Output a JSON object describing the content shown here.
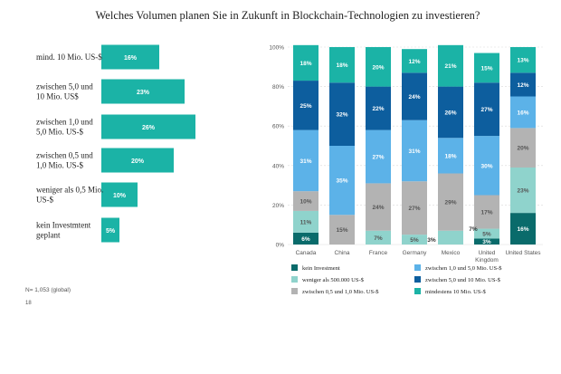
{
  "title": "Welches Volumen planen Sie in Zukunft in Blockchain-Technologien zu investieren?",
  "note": "N= 1,053 (global)",
  "page_number": "18",
  "colors": {
    "kein Investment": "#0a6b6b",
    "weniger als 500.000 US-$": "#8fd3cc",
    "zwischen 0,5 und 1,0 Mio. US-$": "#b3b3b3",
    "zwischen 1,0 und 5,0 Mio. US-$": "#5cb2e8",
    "zwischen 5,0 und 10 Mio. US-$": "#0d5e9e",
    "mindestens 10 Mio. US-$": "#1bb3a6",
    "left_bars": "#1bb3a6"
  },
  "chart_data": [
    {
      "type": "bar",
      "orientation": "horizontal",
      "categories": [
        [
          "mind. 10 Mio. US-$"
        ],
        [
          "zwischen 5,0 und",
          "10 Mio. US$"
        ],
        [
          "zwischen 1,0 und",
          "5,0 Mio. US-$"
        ],
        [
          "zwischen 0,5 und",
          "1,0 Mio. US-$"
        ],
        [
          "weniger als 0,5 Mio.",
          "US-$"
        ],
        [
          "kein Investmtent",
          "geplant"
        ]
      ],
      "values": [
        16,
        23,
        26,
        20,
        10,
        5
      ],
      "value_labels": [
        "16%",
        "23%",
        "26%",
        "20%",
        "10%",
        "5%"
      ]
    },
    {
      "type": "bar",
      "stacked": true,
      "categories": [
        [
          "Canada"
        ],
        [
          "China"
        ],
        [
          "France"
        ],
        [
          "Germany"
        ],
        [
          "Mexico"
        ],
        [
          "United",
          "Kingdom"
        ],
        [
          "United States"
        ]
      ],
      "ylim": [
        0,
        100
      ],
      "yticks": [
        "0%",
        "20%",
        "40%",
        "60%",
        "80%",
        "100%"
      ],
      "grid": true,
      "legend_position": "bottom",
      "series": [
        {
          "name": "kein Investment",
          "values": [
            6,
            0,
            0,
            0,
            0,
            3,
            16
          ],
          "labels": [
            "6%",
            "",
            "",
            "",
            "",
            "3%",
            "16%"
          ]
        },
        {
          "name": "weniger als 500.000 US-$",
          "values": [
            11,
            0,
            7,
            5,
            7,
            5,
            23
          ],
          "labels": [
            "11%",
            "",
            "7%",
            "5%",
            "",
            "5%",
            "23%"
          ]
        },
        {
          "name": "zwischen 0,5 und 1,0 Mio. US-$",
          "values": [
            10,
            15,
            24,
            27,
            29,
            17,
            20
          ],
          "labels": [
            "10%",
            "15%",
            "24%",
            "27%",
            "29%",
            "17%",
            "20%"
          ]
        },
        {
          "name": "zwischen 1,0 und 5,0 Mio. US-$",
          "values": [
            31,
            35,
            27,
            31,
            18,
            30,
            16
          ],
          "labels": [
            "31%",
            "35%",
            "27%",
            "31%",
            "18%",
            "30%",
            "16%"
          ]
        },
        {
          "name": "zwischen 5,0 und 10 Mio. US-$",
          "values": [
            25,
            32,
            22,
            24,
            26,
            27,
            12
          ],
          "labels": [
            "25%",
            "32%",
            "22%",
            "24%",
            "26%",
            "27%",
            "12%"
          ]
        },
        {
          "name": "mindestens 10 Mio. US-$",
          "values": [
            18,
            18,
            20,
            12,
            21,
            15,
            13
          ],
          "labels": [
            "18%",
            "18%",
            "20%",
            "12%",
            "21%",
            "15%",
            "13%"
          ]
        }
      ],
      "outside_labels": [
        {
          "category": "Germany",
          "text": "3%"
        },
        {
          "category": "Mexico",
          "text": "7%"
        }
      ]
    }
  ],
  "legend": [
    [
      "kein Investment",
      "zwischen 1,0 und 5,0 Mio. US-$"
    ],
    [
      "weniger als 500.000 US-$",
      "zwischen 5,0 und 10 Mio. US-$"
    ],
    [
      "zwischen 0,5 und 1,0 Mio. US-$",
      "mindestens 10 Mio. US-$"
    ]
  ]
}
